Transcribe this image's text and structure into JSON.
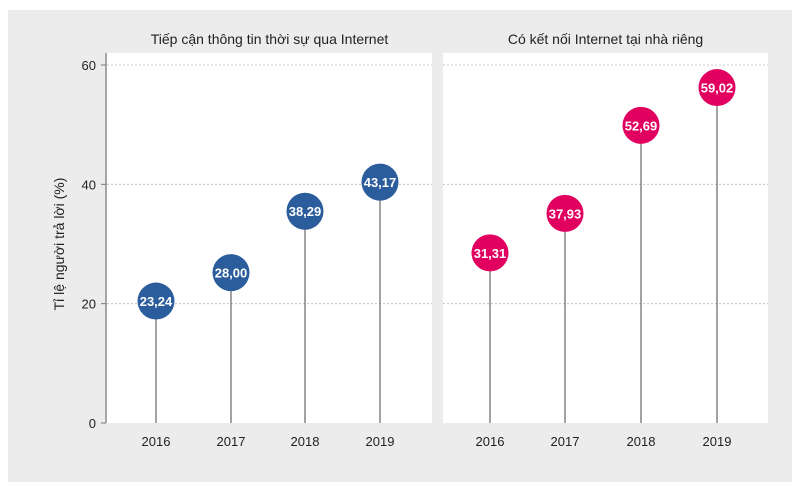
{
  "ylabel": "Tỉ lệ người trả lời (%)",
  "yticks": [
    "0",
    "20",
    "40",
    "60"
  ],
  "chart_data": [
    {
      "type": "lollipop",
      "title": "Tiếp cận thông tin thời sự qua Internet",
      "categories": [
        "2016",
        "2017",
        "2018",
        "2019"
      ],
      "values": [
        23.24,
        28.0,
        38.29,
        43.17
      ],
      "labels": [
        "23,24",
        "28,00",
        "38,29",
        "43,17"
      ],
      "color": "#2b5c9b",
      "ylim": [
        0,
        60
      ],
      "grid": true
    },
    {
      "type": "lollipop",
      "title": "Có kết nối Internet tại nhà riêng",
      "categories": [
        "2016",
        "2017",
        "2018",
        "2019"
      ],
      "values": [
        31.31,
        37.93,
        52.69,
        59.02
      ],
      "labels": [
        "31,31",
        "37,93",
        "52,69",
        "59,02"
      ],
      "color": "#e1005f",
      "ylim": [
        0,
        60
      ],
      "grid": true
    }
  ]
}
